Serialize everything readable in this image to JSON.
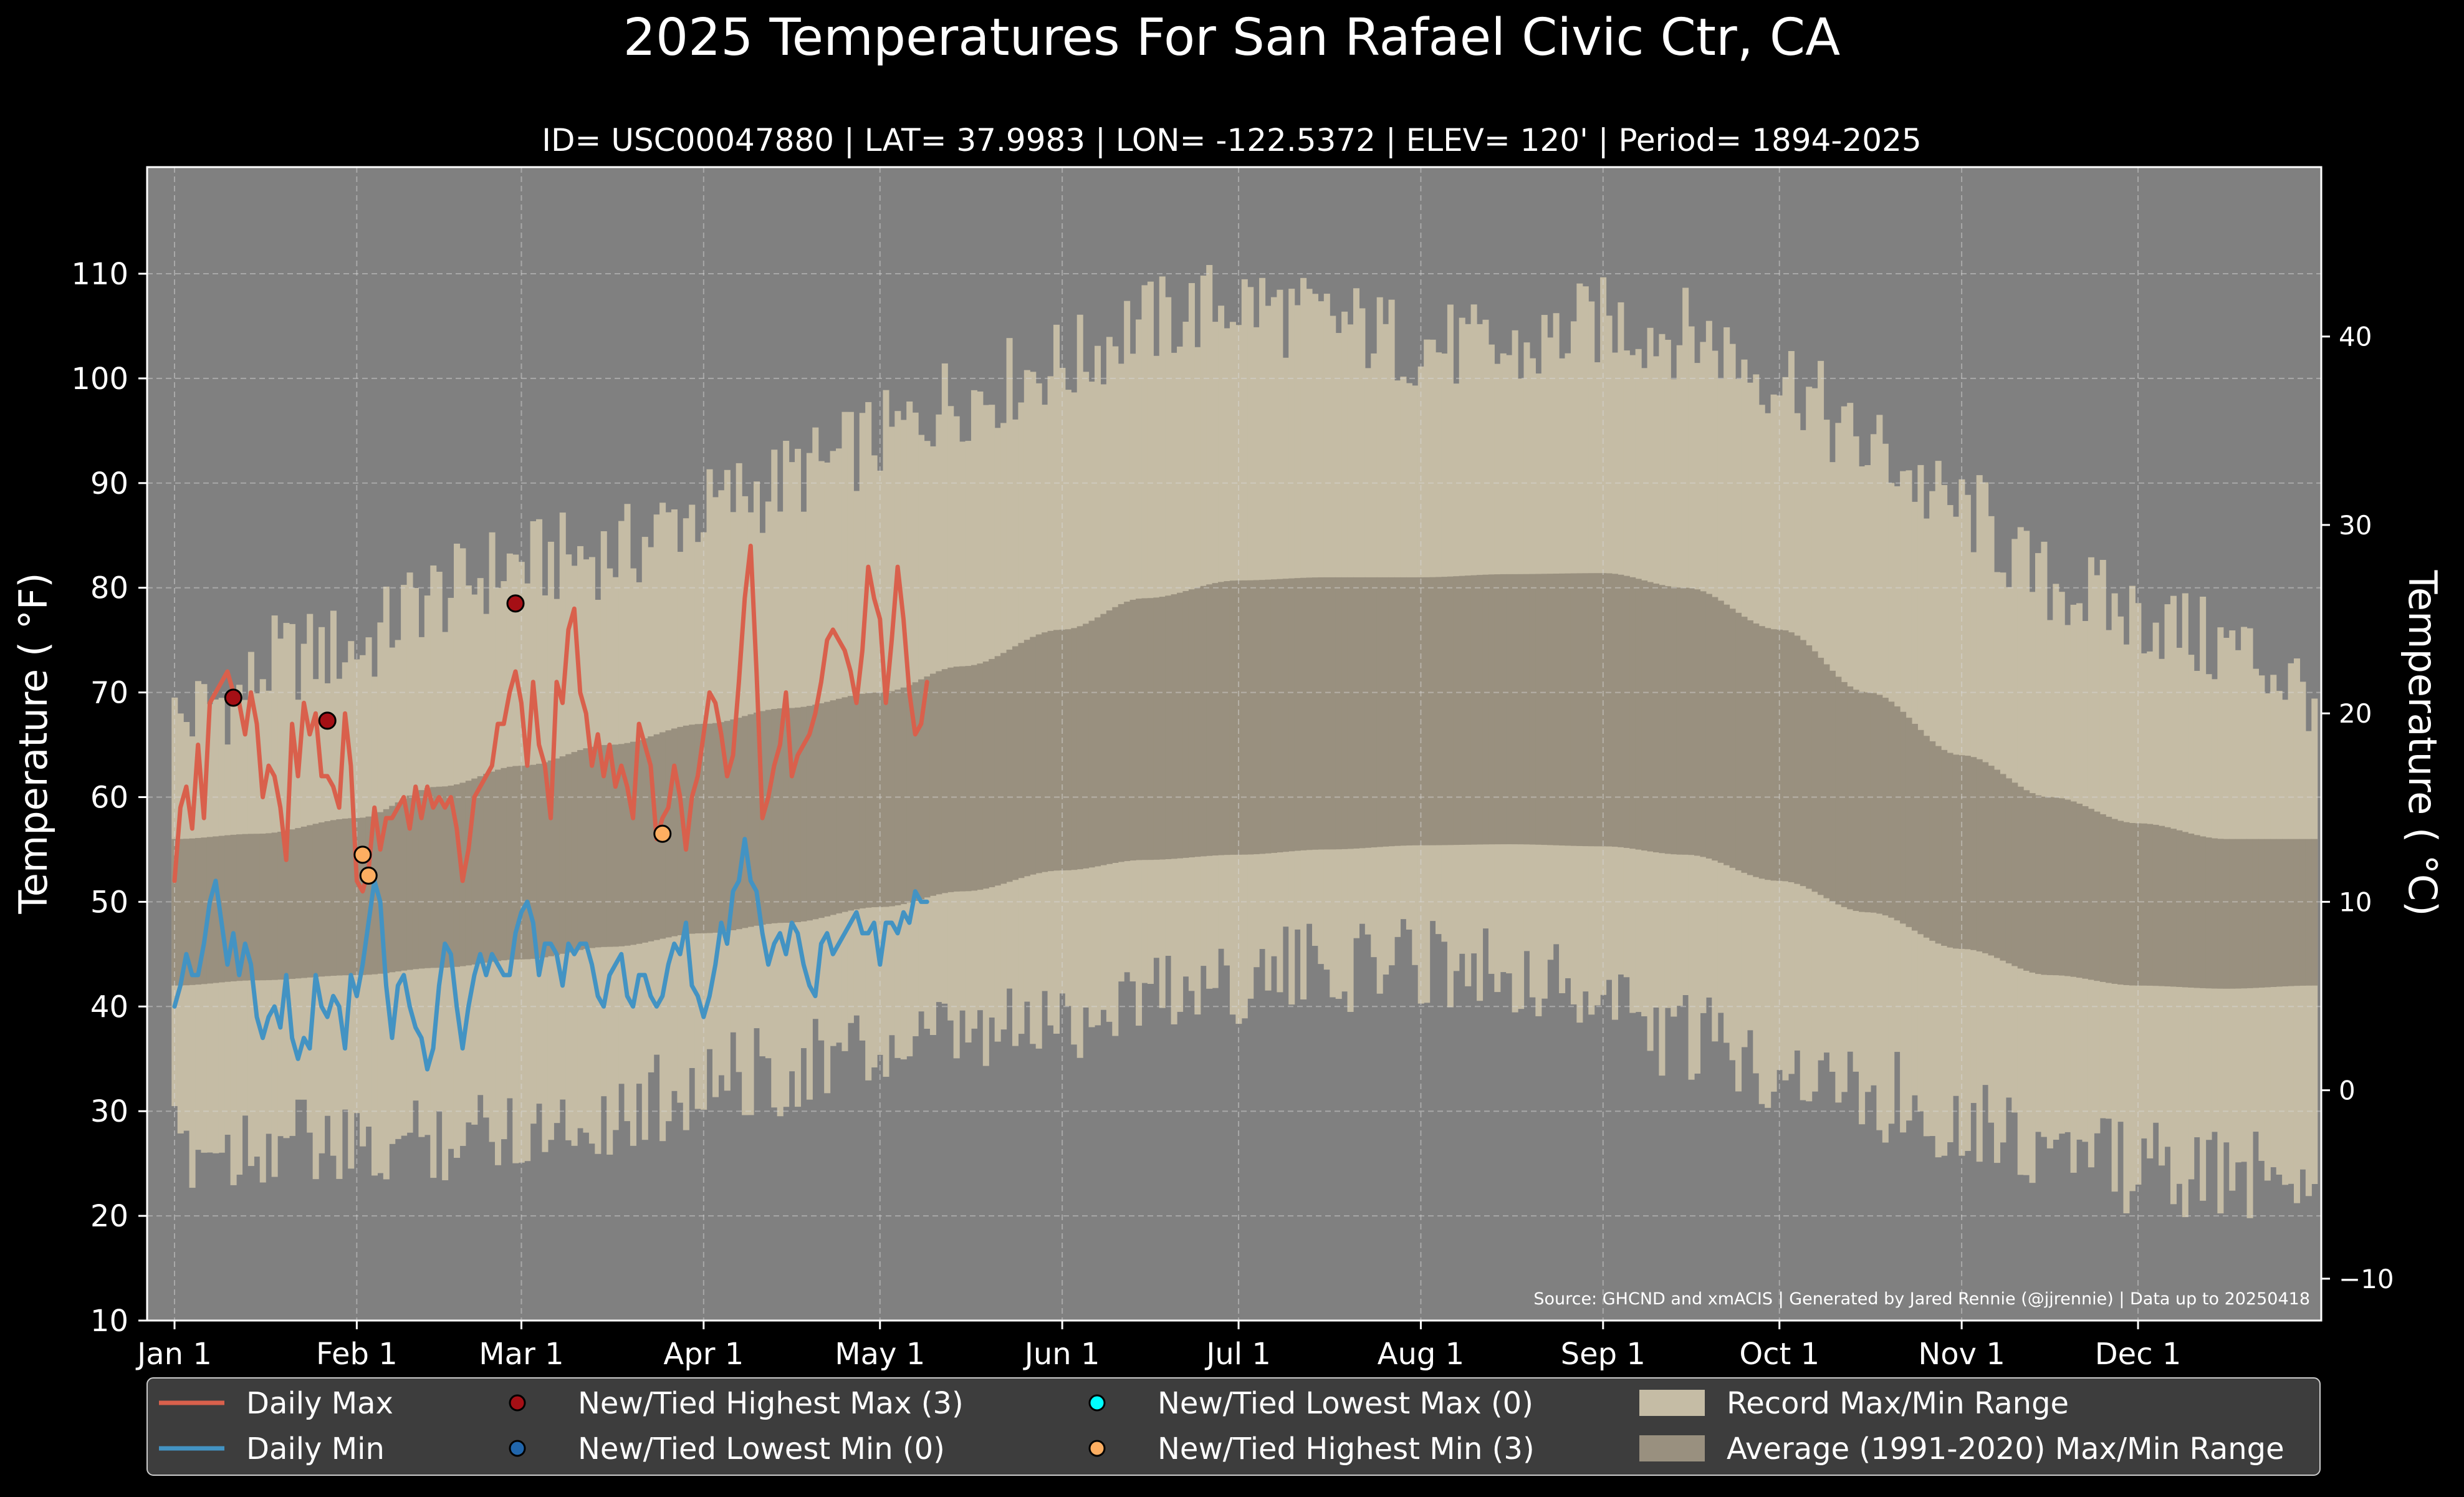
{
  "chart_data": {
    "type": "line",
    "title": "2025 Temperatures For San Rafael Civic Ctr, CA",
    "subtitle": "ID= USC00047880 | LAT= 37.9983 | LON= -122.5372 | ELEV= 120' | Period= 1894-2025",
    "ylabel": "Temperature ($^\\circ$F)",
    "ylabel_display": "Temperature ( °F)",
    "y2label_display": "Temperature ( °C)",
    "source": "Source: GHCND and xmACIS | Generated by Jared Rennie (@jjrennie) | Data up to 20250418",
    "x_axis": {
      "unit": "day of year",
      "range": [
        1,
        365
      ],
      "ticks": [
        {
          "day": 1,
          "label": "Jan 1"
        },
        {
          "day": 32,
          "label": "Feb 1"
        },
        {
          "day": 60,
          "label": "Mar 1"
        },
        {
          "day": 91,
          "label": "Apr 1"
        },
        {
          "day": 121,
          "label": "May 1"
        },
        {
          "day": 152,
          "label": "Jun 1"
        },
        {
          "day": 182,
          "label": "Jul 1"
        },
        {
          "day": 213,
          "label": "Aug 1"
        },
        {
          "day": 244,
          "label": "Sep 1"
        },
        {
          "day": 274,
          "label": "Oct 1"
        },
        {
          "day": 305,
          "label": "Nov 1"
        },
        {
          "day": 335,
          "label": "Dec 1"
        }
      ]
    },
    "y_axis": {
      "unit": "°F",
      "range": [
        10,
        120
      ],
      "ticks": [
        10,
        20,
        30,
        40,
        50,
        60,
        70,
        80,
        90,
        100,
        110
      ]
    },
    "y2_axis": {
      "unit": "°C",
      "ticks": [
        -10,
        0,
        10,
        20,
        30,
        40
      ]
    },
    "grid": true,
    "colors": {
      "background": "#000000",
      "plot_bg": "#808080",
      "record_band": "#c5bca5",
      "normal_band": "#99907f",
      "daily_max": "#d9604c",
      "daily_min": "#4393c3",
      "highest_max_marker": "#a50f15",
      "lowest_min_marker": "#2166ac",
      "lowest_max_marker": "#00ffff",
      "highest_min_marker": "#fdae61",
      "legend_bg": "#3d3d3d"
    },
    "record_range": {
      "label": "Record Max/Min Range",
      "max_anchors": [
        [
          1,
          66
        ],
        [
          10,
          68
        ],
        [
          20,
          72
        ],
        [
          32,
          73
        ],
        [
          45,
          78
        ],
        [
          60,
          81
        ],
        [
          75,
          82
        ],
        [
          91,
          86
        ],
        [
          100,
          88
        ],
        [
          110,
          90
        ],
        [
          121,
          93
        ],
        [
          135,
          97
        ],
        [
          152,
          100
        ],
        [
          166,
          104
        ],
        [
          182,
          106
        ],
        [
          197,
          104
        ],
        [
          213,
          102
        ],
        [
          228,
          101
        ],
        [
          244,
          104
        ],
        [
          258,
          103
        ],
        [
          274,
          99
        ],
        [
          289,
          92
        ],
        [
          305,
          86
        ],
        [
          320,
          79
        ],
        [
          335,
          76
        ],
        [
          350,
          73
        ],
        [
          365,
          69
        ]
      ],
      "min_anchors": [
        [
          1,
          28
        ],
        [
          10,
          28
        ],
        [
          20,
          29
        ],
        [
          32,
          27
        ],
        [
          45,
          29
        ],
        [
          60,
          30
        ],
        [
          75,
          31
        ],
        [
          91,
          34
        ],
        [
          100,
          35
        ],
        [
          110,
          36
        ],
        [
          121,
          37
        ],
        [
          135,
          38
        ],
        [
          152,
          40
        ],
        [
          166,
          43
        ],
        [
          182,
          44
        ],
        [
          197,
          45
        ],
        [
          213,
          46
        ],
        [
          228,
          45
        ],
        [
          244,
          42
        ],
        [
          258,
          38
        ],
        [
          274,
          36
        ],
        [
          289,
          33
        ],
        [
          305,
          31
        ],
        [
          320,
          28
        ],
        [
          335,
          26
        ],
        [
          350,
          25
        ],
        [
          365,
          26
        ]
      ]
    },
    "normal_range": {
      "label": "Average (1991-2020) Max/Min Range",
      "max_anchors": [
        [
          1,
          56
        ],
        [
          15,
          56.5
        ],
        [
          32,
          58
        ],
        [
          46,
          61
        ],
        [
          60,
          63
        ],
        [
          75,
          65
        ],
        [
          91,
          67
        ],
        [
          105,
          68.5
        ],
        [
          121,
          70
        ],
        [
          135,
          72.5
        ],
        [
          152,
          76
        ],
        [
          166,
          79
        ],
        [
          182,
          80.7
        ],
        [
          197,
          81
        ],
        [
          213,
          81
        ],
        [
          228,
          81.3
        ],
        [
          244,
          81.4
        ],
        [
          258,
          80
        ],
        [
          274,
          76
        ],
        [
          289,
          70
        ],
        [
          305,
          64
        ],
        [
          320,
          60
        ],
        [
          335,
          57.5
        ],
        [
          350,
          56
        ],
        [
          365,
          56
        ]
      ],
      "min_anchors": [
        [
          1,
          42
        ],
        [
          15,
          42.5
        ],
        [
          32,
          43
        ],
        [
          46,
          43.7
        ],
        [
          60,
          44.5
        ],
        [
          75,
          45.7
        ],
        [
          91,
          47
        ],
        [
          105,
          48
        ],
        [
          121,
          49.5
        ],
        [
          135,
          51
        ],
        [
          152,
          53
        ],
        [
          166,
          54
        ],
        [
          182,
          54.5
        ],
        [
          197,
          55
        ],
        [
          213,
          55.4
        ],
        [
          228,
          55.5
        ],
        [
          244,
          55.3
        ],
        [
          258,
          54.5
        ],
        [
          274,
          52
        ],
        [
          289,
          49
        ],
        [
          305,
          45.5
        ],
        [
          320,
          43
        ],
        [
          335,
          42
        ],
        [
          350,
          41.7
        ],
        [
          365,
          42
        ]
      ]
    },
    "series": [
      {
        "name": "Daily Max",
        "start_day": 1,
        "values": [
          52,
          59,
          61,
          57,
          65,
          58,
          69,
          70,
          71,
          72,
          70,
          69,
          66,
          70,
          67,
          60,
          63,
          62,
          59,
          54,
          67,
          62,
          69,
          66,
          68,
          62,
          62,
          61,
          59,
          68,
          63,
          52,
          51,
          53,
          59,
          55,
          58,
          58,
          59,
          60,
          57,
          61,
          58,
          61,
          59,
          60,
          59,
          60,
          57,
          52,
          55,
          60,
          61,
          62,
          63,
          67,
          67,
          70,
          72,
          69,
          63,
          71,
          65,
          63,
          58,
          71,
          69,
          76,
          78,
          70,
          68,
          63,
          66,
          62,
          65,
          61,
          63,
          61,
          58,
          67,
          65,
          63,
          56,
          58,
          59,
          63,
          60,
          55,
          60,
          62,
          66,
          70,
          69,
          66,
          62,
          64,
          71,
          79,
          84,
          72,
          58,
          60,
          63,
          65,
          70,
          62,
          64,
          65,
          66,
          68,
          71,
          75,
          76,
          75,
          74,
          72,
          69,
          74,
          82,
          79,
          77,
          69,
          75,
          82,
          77,
          70,
          66,
          67,
          71
        ]
      },
      {
        "name": "Daily Min",
        "start_day": 1,
        "values": [
          40,
          42,
          45,
          43,
          43,
          46,
          50,
          52,
          48,
          44,
          47,
          43,
          46,
          44,
          39,
          37,
          39,
          40,
          38,
          43,
          37,
          35,
          37,
          36,
          43,
          40,
          39,
          41,
          40,
          36,
          43,
          41,
          44,
          48,
          52,
          50,
          42,
          37,
          42,
          43,
          40,
          38,
          37,
          34,
          36,
          42,
          46,
          45,
          40,
          36,
          40,
          43,
          45,
          43,
          45,
          44,
          43,
          43,
          47,
          49,
          50,
          48,
          43,
          46,
          46,
          45,
          42,
          46,
          45,
          46,
          46,
          44,
          41,
          40,
          43,
          44,
          45,
          41,
          40,
          43,
          43,
          41,
          40,
          41,
          44,
          46,
          45,
          48,
          42,
          41,
          39,
          41,
          44,
          48,
          46,
          51,
          52,
          56,
          52,
          51,
          47,
          44,
          46,
          47,
          45,
          48,
          47,
          44,
          42,
          41,
          46,
          47,
          45,
          46,
          47,
          48,
          49,
          47,
          47,
          48,
          44,
          48,
          48,
          47,
          49,
          48,
          51,
          50,
          50
        ]
      }
    ],
    "highlights": [
      {
        "name": "New/Tied Highest Max",
        "day": 11,
        "value": 69.5
      },
      {
        "name": "New/Tied Highest Max",
        "day": 27,
        "value": 67.3
      },
      {
        "name": "New/Tied Highest Max",
        "day": 59,
        "value": 78.5
      },
      {
        "name": "New/Tied Highest Min",
        "day": 33,
        "value": 54.5
      },
      {
        "name": "New/Tied Highest Min",
        "day": 34,
        "value": 52.5
      },
      {
        "name": "New/Tied Highest Min",
        "day": 84,
        "value": 56.5
      }
    ],
    "legend": {
      "placement": "bottom",
      "entries": [
        {
          "key": "daily_max",
          "label": "Daily Max",
          "kind": "line"
        },
        {
          "key": "daily_min",
          "label": "Daily Min",
          "kind": "line"
        },
        {
          "key": "highest_max_marker",
          "label": "New/Tied Highest Max (3)",
          "kind": "marker"
        },
        {
          "key": "lowest_min_marker",
          "label": "New/Tied Lowest Min (0)",
          "kind": "marker"
        },
        {
          "key": "lowest_max_marker",
          "label": "New/Tied Lowest Max (0)",
          "kind": "marker"
        },
        {
          "key": "highest_min_marker",
          "label": "New/Tied Highest Min (3)",
          "kind": "marker"
        },
        {
          "key": "record_band",
          "label": "Record Max/Min Range",
          "kind": "patch"
        },
        {
          "key": "normal_band",
          "label": "Average (1991-2020) Max/Min Range",
          "kind": "patch"
        }
      ]
    }
  }
}
